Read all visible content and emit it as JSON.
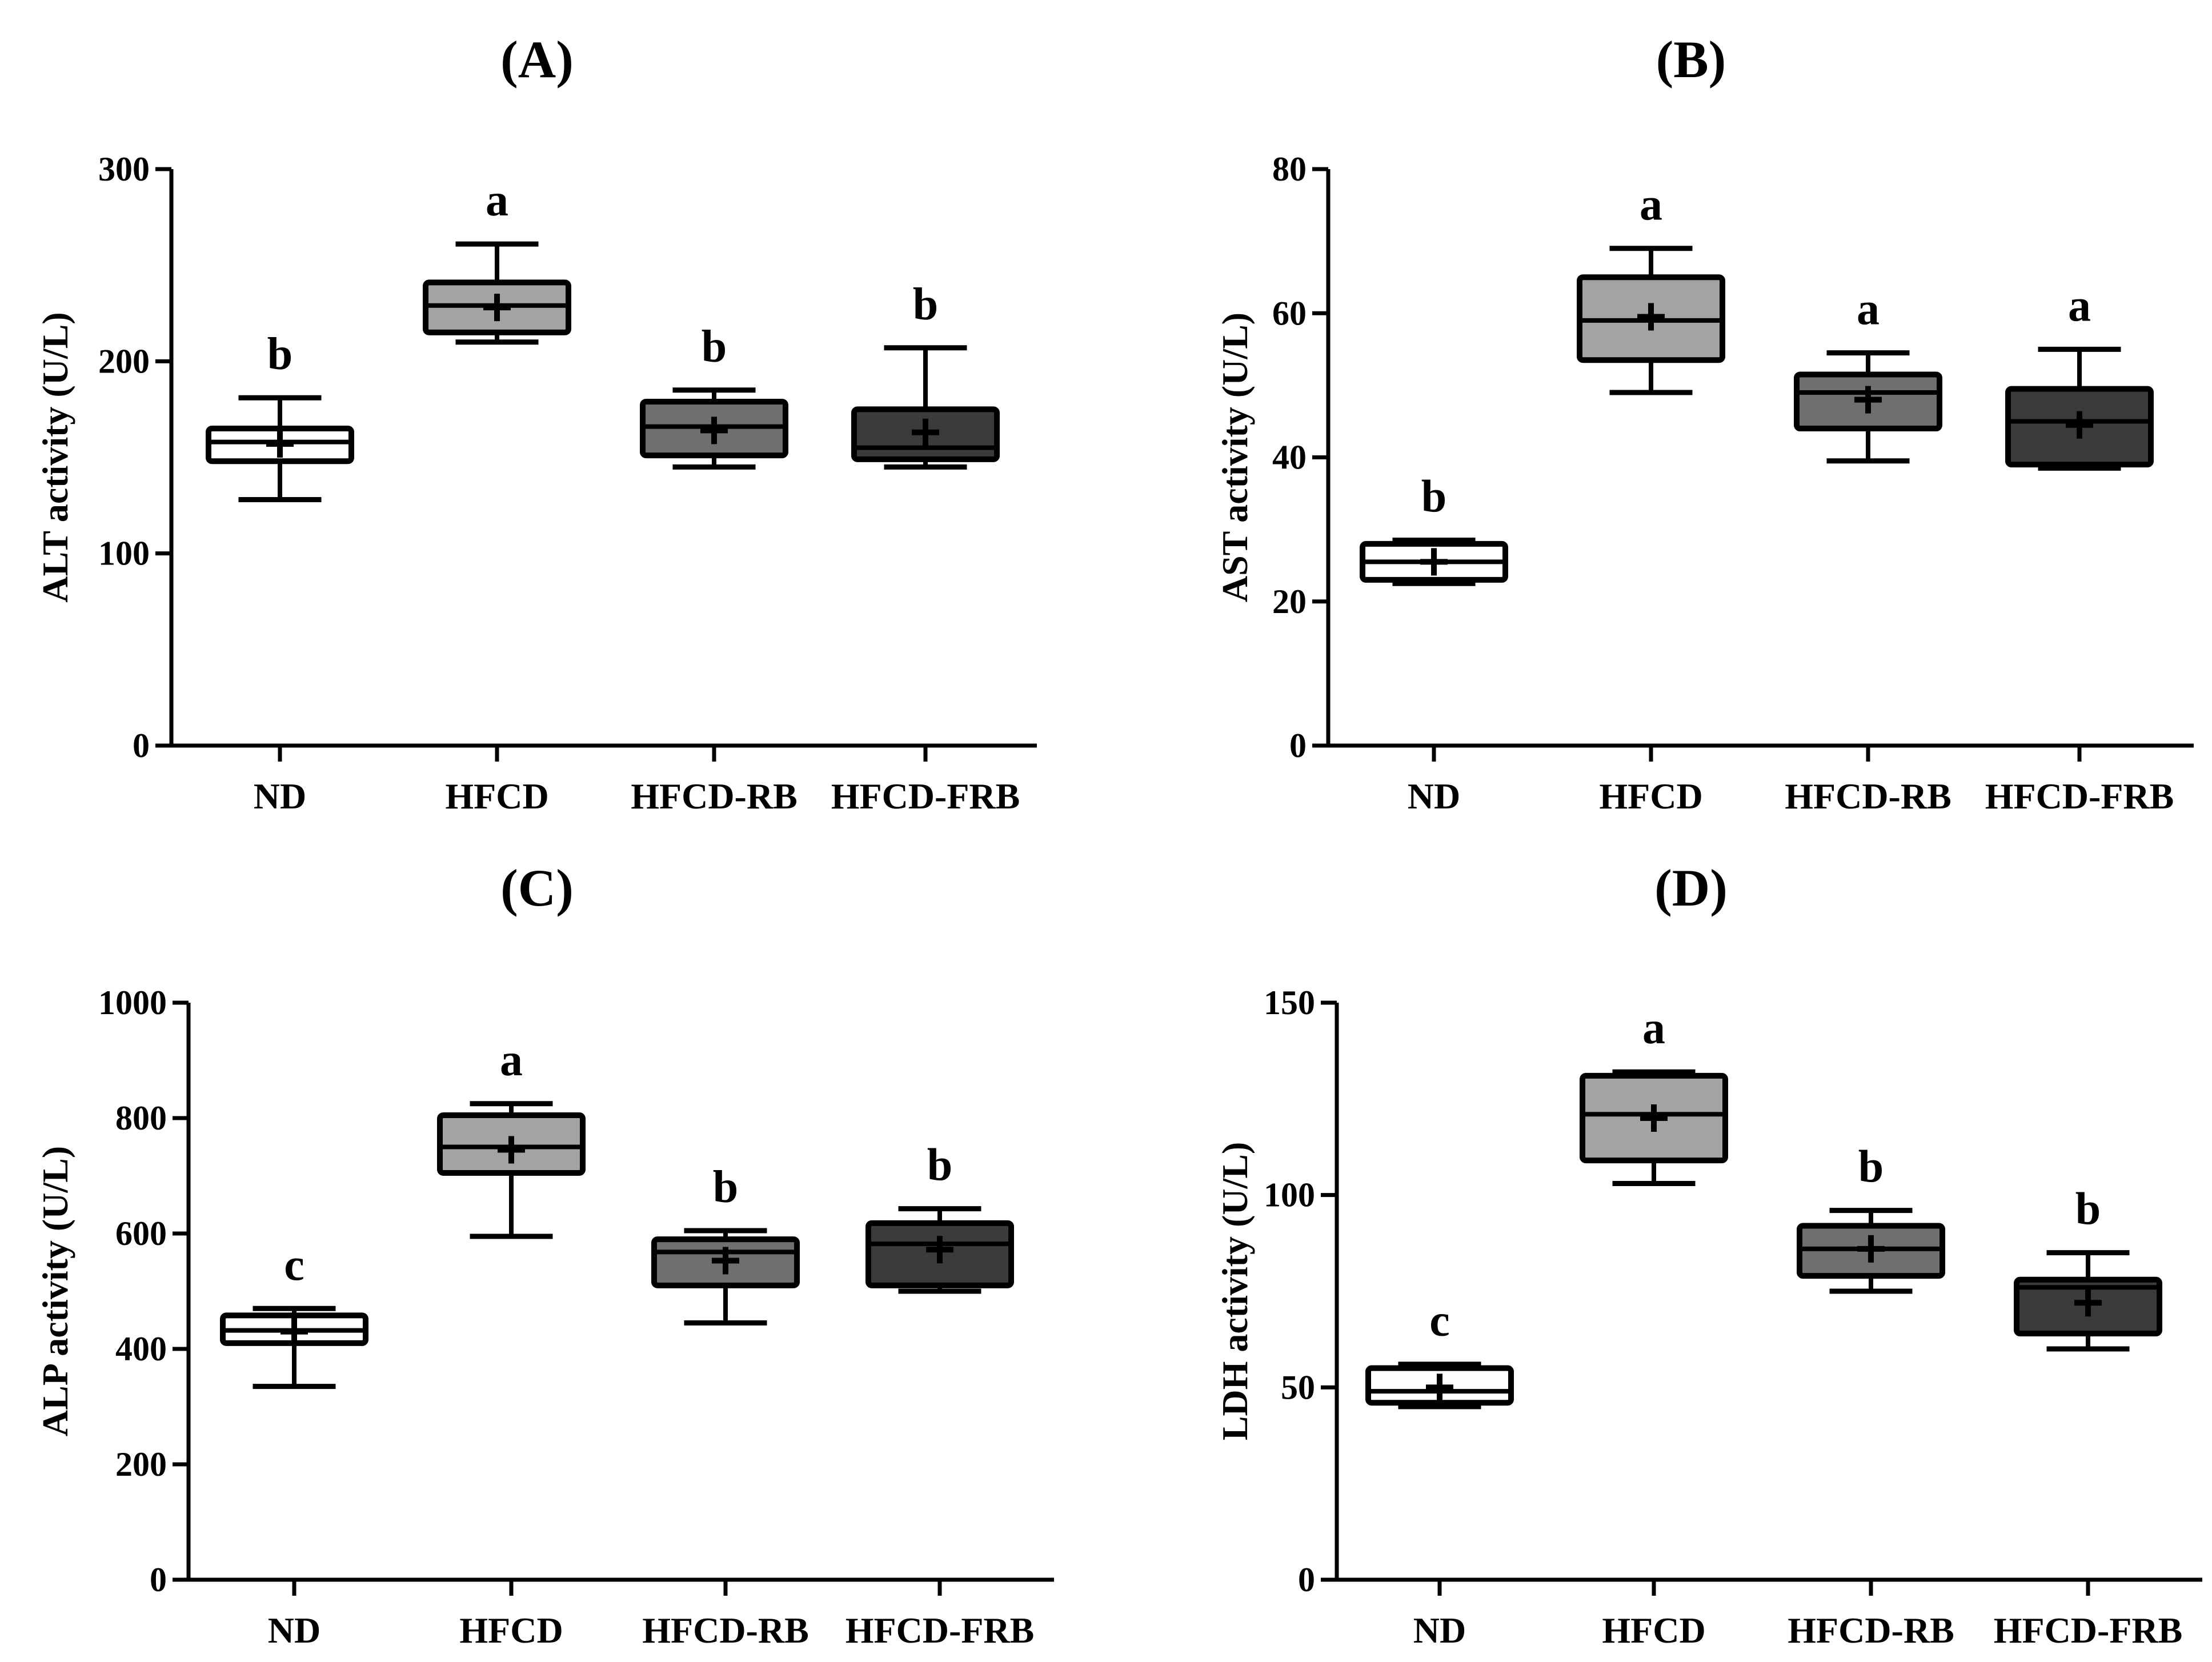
{
  "chart_data": [
    {
      "type": "box",
      "panel": "(A)",
      "ylabel": "ALT activity (U/L)",
      "ylim": [
        0,
        300
      ],
      "yticks": [
        0,
        100,
        200,
        300
      ],
      "categories": [
        "ND",
        "HFCD",
        "HFCD-RB",
        "HFCD-FRB"
      ],
      "boxes": [
        {
          "min": 128,
          "q1": 148,
          "median": 158,
          "q3": 165,
          "max": 181,
          "mean": 157,
          "letter": "b"
        },
        {
          "min": 210,
          "q1": 215,
          "median": 229,
          "q3": 241,
          "max": 261,
          "mean": 228,
          "letter": "a"
        },
        {
          "min": 145,
          "q1": 151,
          "median": 166,
          "q3": 179,
          "max": 185,
          "mean": 164,
          "letter": "b"
        },
        {
          "min": 145,
          "q1": 149,
          "median": 155,
          "q3": 175,
          "max": 207,
          "mean": 163,
          "letter": "b"
        }
      ]
    },
    {
      "type": "box",
      "panel": "(B)",
      "ylabel": "AST activity (U/L)",
      "ylim": [
        0,
        80
      ],
      "yticks": [
        0,
        20,
        40,
        60,
        80
      ],
      "categories": [
        "ND",
        "HFCD",
        "HFCD-RB",
        "HFCD-FRB"
      ],
      "boxes": [
        {
          "min": 22.5,
          "q1": 23,
          "median": 25.5,
          "q3": 28,
          "max": 28.5,
          "mean": 25.5,
          "letter": "b"
        },
        {
          "min": 49,
          "q1": 53.5,
          "median": 59,
          "q3": 65,
          "max": 69,
          "mean": 59.5,
          "letter": "a"
        },
        {
          "min": 39.5,
          "q1": 44,
          "median": 49,
          "q3": 51.5,
          "max": 54.5,
          "mean": 48,
          "letter": "a"
        },
        {
          "min": 38.5,
          "q1": 39,
          "median": 45,
          "q3": 49.5,
          "max": 55,
          "mean": 44.5,
          "letter": "a"
        }
      ]
    },
    {
      "type": "box",
      "panel": "(C)",
      "ylabel": "ALP activity  (U/L)",
      "ylim": [
        0,
        1000
      ],
      "yticks": [
        0,
        200,
        400,
        600,
        800,
        1000
      ],
      "categories": [
        "ND",
        "HFCD",
        "HFCD-RB",
        "HFCD-FRB"
      ],
      "boxes": [
        {
          "min": 335,
          "q1": 410,
          "median": 432,
          "q3": 458,
          "max": 470,
          "mean": 430,
          "letter": "c"
        },
        {
          "min": 595,
          "q1": 705,
          "median": 750,
          "q3": 805,
          "max": 825,
          "mean": 745,
          "letter": "a"
        },
        {
          "min": 445,
          "q1": 510,
          "median": 568,
          "q3": 590,
          "max": 605,
          "mean": 553,
          "letter": "b"
        },
        {
          "min": 500,
          "q1": 510,
          "median": 582,
          "q3": 618,
          "max": 643,
          "mean": 572,
          "letter": "b"
        }
      ]
    },
    {
      "type": "box",
      "panel": "(D)",
      "ylabel": "LDH activity (U/L)",
      "ylim": [
        0,
        150
      ],
      "yticks": [
        0,
        50,
        100,
        150
      ],
      "categories": [
        "ND",
        "HFCD",
        "HFCD-RB",
        "HFCD-FRB"
      ],
      "boxes": [
        {
          "min": 45,
          "q1": 46,
          "median": 49,
          "q3": 55,
          "max": 56,
          "mean": 50,
          "letter": "c"
        },
        {
          "min": 103,
          "q1": 109,
          "median": 121,
          "q3": 131,
          "max": 132,
          "mean": 120,
          "letter": "a"
        },
        {
          "min": 75,
          "q1": 79,
          "median": 86,
          "q3": 92,
          "max": 96,
          "mean": 86,
          "letter": "b"
        },
        {
          "min": 60,
          "q1": 64,
          "median": 76,
          "q3": 78,
          "max": 85,
          "mean": 72,
          "letter": "b"
        }
      ]
    }
  ],
  "colors": {
    "fills": [
      "#ffffff",
      "#a3a3a3",
      "#6f6f6f",
      "#3b3b3b"
    ],
    "stroke": "#000000"
  }
}
